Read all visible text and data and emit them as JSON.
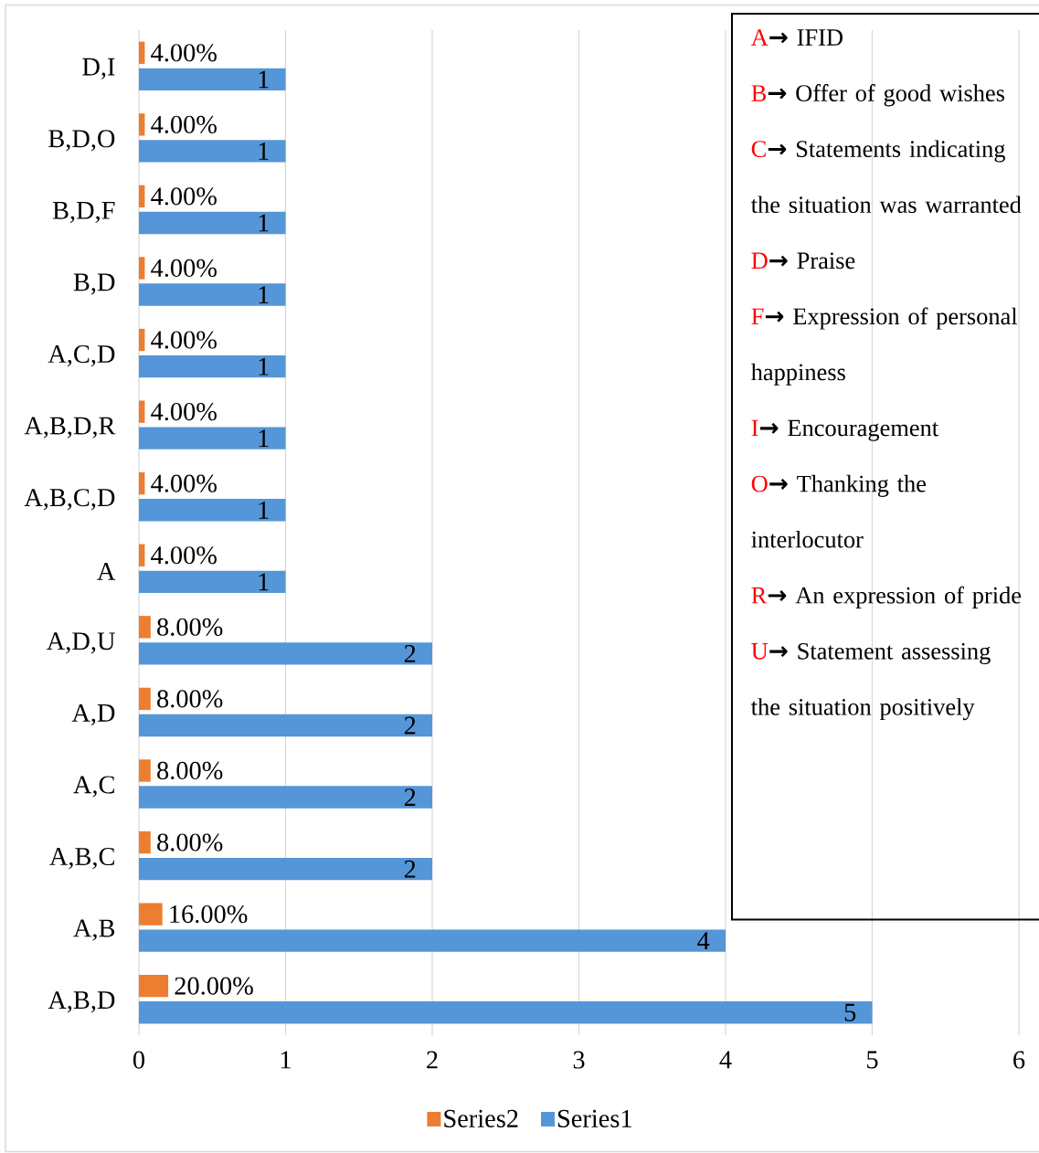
{
  "chart_data": {
    "type": "bar",
    "orientation": "horizontal",
    "categories": [
      "D,I",
      "B,D,O",
      "B,D,F",
      "B,D",
      "A,C,D",
      "A,B,D,R",
      "A,B,C,D",
      "A",
      "A,D,U",
      "A,D",
      "A,C",
      "A,B,C",
      "A,B",
      "A,B,D"
    ],
    "series": [
      {
        "name": "Series2",
        "color": "#ed7d31",
        "values": [
          0.04,
          0.04,
          0.04,
          0.04,
          0.04,
          0.04,
          0.04,
          0.04,
          0.08,
          0.08,
          0.08,
          0.08,
          0.16,
          0.2
        ],
        "value_labels": [
          "4.00%",
          "4.00%",
          "4.00%",
          "4.00%",
          "4.00%",
          "4.00%",
          "4.00%",
          "4.00%",
          "8.00%",
          "8.00%",
          "8.00%",
          "8.00%",
          "16.00%",
          "20.00%"
        ]
      },
      {
        "name": "Series1",
        "color": "#5596d8",
        "values": [
          1,
          1,
          1,
          1,
          1,
          1,
          1,
          1,
          2,
          2,
          2,
          2,
          4,
          5
        ],
        "value_labels": [
          "1",
          "1",
          "1",
          "1",
          "1",
          "1",
          "1",
          "1",
          "2",
          "2",
          "2",
          "2",
          "4",
          "5"
        ]
      }
    ],
    "xlim": [
      0,
      6
    ],
    "xticks": [
      0,
      1,
      2,
      3,
      4,
      5,
      6
    ],
    "grid": "x",
    "legend": "bottom",
    "annotations": [
      "A",
      "→ IFID",
      "B",
      "→ Offer of good wishes",
      "C",
      "→ Statements indicating the situation was warranted",
      "D",
      "→ Praise",
      "F",
      "→ Expression of personal happiness",
      "I",
      "→ Encouragement",
      "O",
      "→ Thanking the interlocutor",
      "R",
      "→ An expression of pride",
      "U",
      "→ Statement assessing the situation positively"
    ]
  }
}
